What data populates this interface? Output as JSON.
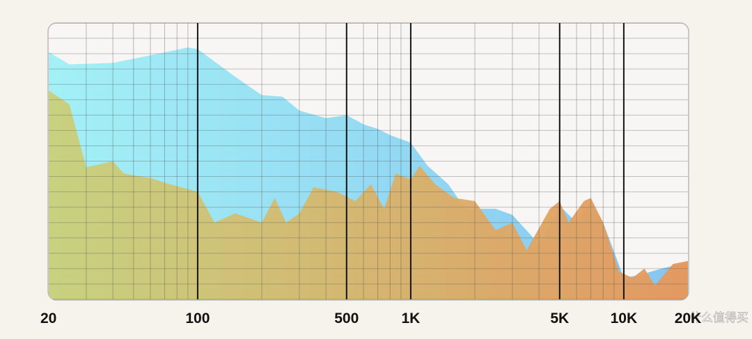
{
  "chart_data": {
    "type": "area",
    "xscale": "log",
    "xlim": [
      20,
      20000
    ],
    "xticks": [
      {
        "value": 20,
        "label": "20"
      },
      {
        "value": 100,
        "label": "100"
      },
      {
        "value": 500,
        "label": "500"
      },
      {
        "value": 1000,
        "label": "1K"
      },
      {
        "value": 5000,
        "label": "5K"
      },
      {
        "value": 10000,
        "label": "10K"
      },
      {
        "value": 20000,
        "label": "20K"
      }
    ],
    "xgrid_minor": [
      30,
      40,
      50,
      60,
      70,
      80,
      90,
      200,
      300,
      400,
      600,
      700,
      800,
      900,
      2000,
      3000,
      4000,
      6000,
      7000,
      8000,
      9000
    ],
    "ylim": [
      0,
      18
    ],
    "yticks": [
      0,
      1,
      2,
      3,
      4,
      5,
      6,
      7,
      8,
      9,
      10,
      11,
      12,
      13,
      14,
      15,
      16,
      17,
      18
    ],
    "grid": true,
    "series": [
      {
        "color": "#9ff0f6",
        "color_end": "#80c2f0",
        "x": [
          20,
          25,
          40,
          60,
          90,
          100,
          150,
          200,
          250,
          300,
          400,
          500,
          600,
          700,
          800,
          1000,
          1200,
          1500,
          1800,
          2500,
          3000,
          4000,
          5000,
          6000,
          7000,
          8000,
          10000,
          12000,
          15000,
          20000
        ],
        "values": [
          16.1,
          15.3,
          15.4,
          15.9,
          16.4,
          16.3,
          14.5,
          13.3,
          13.2,
          12.3,
          11.8,
          12.0,
          11.4,
          11.1,
          10.7,
          10.2,
          8.7,
          7.5,
          5.9,
          5.9,
          5.5,
          3.6,
          6.1,
          5.0,
          6.4,
          5.0,
          1.4,
          1.6,
          2.0,
          2.4
        ]
      },
      {
        "color": "#c9d07a",
        "color_end": "#e8975a",
        "x": [
          20,
          25,
          30,
          40,
          45,
          60,
          70,
          100,
          120,
          150,
          200,
          230,
          260,
          300,
          350,
          450,
          550,
          650,
          750,
          850,
          1000,
          1100,
          1300,
          1600,
          2000,
          2500,
          3000,
          3500,
          4500,
          5000,
          5500,
          6500,
          7000,
          8000,
          9500,
          11000,
          12500,
          14000,
          17000,
          20000
        ],
        "values": [
          13.6,
          12.7,
          8.6,
          9.0,
          8.2,
          7.9,
          7.6,
          7.0,
          5.0,
          5.6,
          5.0,
          6.6,
          5.0,
          5.6,
          7.3,
          7.0,
          6.4,
          7.5,
          5.9,
          8.2,
          7.8,
          8.7,
          7.5,
          6.6,
          6.4,
          4.5,
          5.0,
          3.2,
          5.9,
          6.4,
          5.0,
          6.4,
          6.6,
          5.0,
          1.8,
          1.4,
          2.0,
          0.9,
          2.3,
          2.5
        ]
      }
    ],
    "watermark": "什么值得买"
  }
}
